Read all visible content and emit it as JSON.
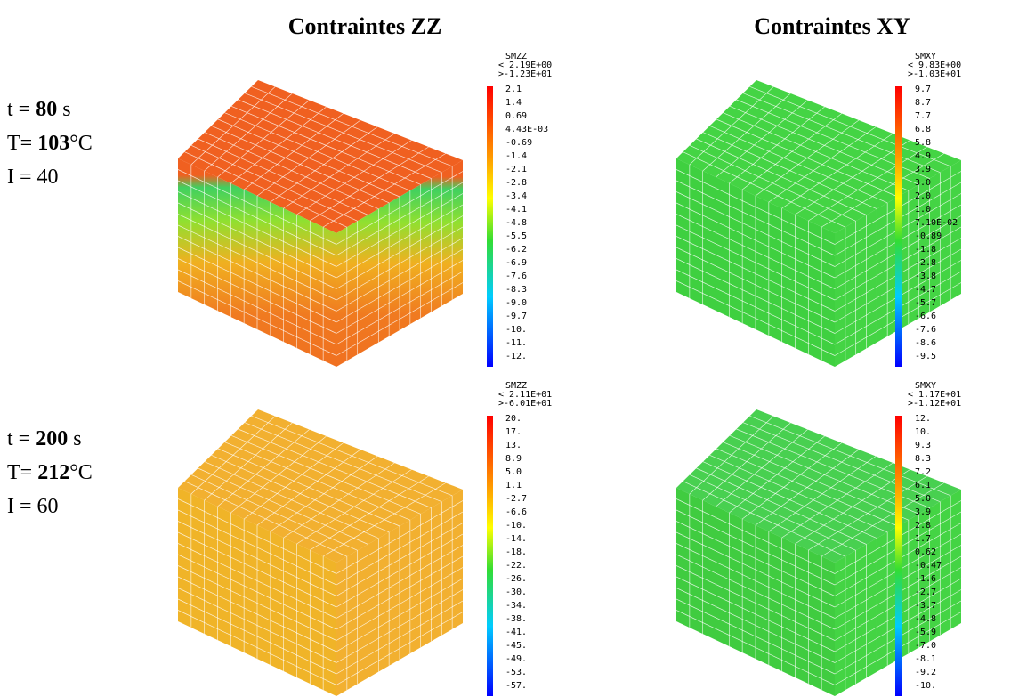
{
  "columns": [
    "Contraintes ZZ",
    "Contraintes XY"
  ],
  "rows": [
    {
      "labels": [
        [
          "t = ",
          "80",
          " s"
        ],
        [
          "T= ",
          "103",
          "°C"
        ],
        [
          "I = 40"
        ]
      ],
      "panels": [
        {
          "legend_title": "SMZZ",
          "max": "< 2.19E+00",
          "min": ">-1.23E+01",
          "levels": [
            "2.1",
            "1.4",
            "0.69",
            "4.43E-03",
            "-0.69",
            "-1.4",
            "-2.1",
            "-2.8",
            "-3.4",
            "-4.1",
            "-4.8",
            "-5.5",
            "-6.2",
            "-6.9",
            "-7.6",
            "-8.3",
            "-9.0",
            "-9.7",
            "-10.",
            "-11.",
            "-12."
          ]
        },
        {
          "legend_title": "SMXY",
          "max": "< 9.83E+00",
          "min": ">-1.03E+01",
          "levels": [
            "9.7",
            "8.7",
            "7.7",
            "6.8",
            "5.8",
            "4.9",
            "3.9",
            "3.0",
            "2.0",
            "1.0",
            "7.10E-02",
            "-0.89",
            "-1.8",
            "-2.8",
            "-3.8",
            "-4.7",
            "-5.7",
            "-6.6",
            "-7.6",
            "-8.6",
            "-9.5"
          ]
        }
      ]
    },
    {
      "labels": [
        [
          "t = ",
          "200",
          " s"
        ],
        [
          "T= ",
          "212",
          "°C"
        ],
        [
          "I = 60"
        ]
      ],
      "panels": [
        {
          "legend_title": "SMZZ",
          "max": "< 2.11E+01",
          "min": ">-6.01E+01",
          "levels": [
            "20.",
            "17.",
            "13.",
            "8.9",
            "5.0",
            "1.1",
            "-2.7",
            "-6.6",
            "-10.",
            "-14.",
            "-18.",
            "-22.",
            "-26.",
            "-30.",
            "-34.",
            "-38.",
            "-41.",
            "-45.",
            "-49.",
            "-53.",
            "-57."
          ]
        },
        {
          "legend_title": "SMXY",
          "max": "< 1.17E+01",
          "min": ">-1.12E+01",
          "levels": [
            "12.",
            "10.",
            "9.3",
            "8.3",
            "7.2",
            "6.1",
            "5.0",
            "3.9",
            "2.8",
            "1.7",
            "0.62",
            "-0.47",
            "-1.6",
            "-2.7",
            "-3.7",
            "-4.8",
            "-5.9",
            "-7.0",
            "-8.1",
            "-9.2",
            "-10."
          ]
        }
      ]
    }
  ]
}
